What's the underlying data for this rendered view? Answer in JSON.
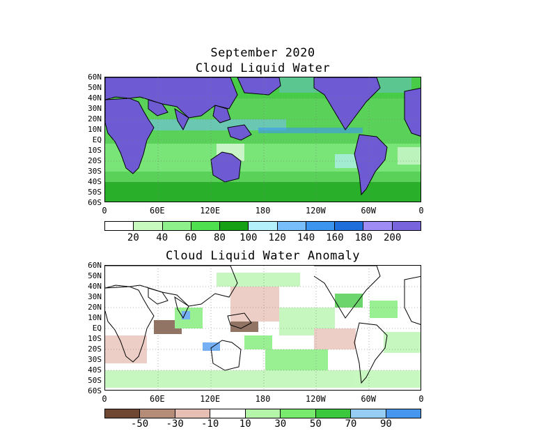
{
  "figure": {
    "title": "September 2020",
    "top_subtitle": "Cloud Liquid Water",
    "bottom_subtitle": "Cloud Liquid Water Anomaly"
  },
  "lat_labels": [
    "60N",
    "50N",
    "40N",
    "30N",
    "20N",
    "10N",
    "EQ",
    "10S",
    "20S",
    "30S",
    "40S",
    "50S",
    "60S"
  ],
  "lon_labels": [
    "0",
    "60E",
    "120E",
    "180",
    "120W",
    "60W",
    "0"
  ],
  "top_colorbar": {
    "colors": [
      "#ffffff",
      "#c8fac0",
      "#8ef08a",
      "#4ee04e",
      "#16a016",
      "#b4f0fa",
      "#78befa",
      "#3c96f0",
      "#1e6edc",
      "#a08cf5",
      "#7864dc"
    ],
    "labels": [
      "20",
      "40",
      "60",
      "80",
      "100",
      "120",
      "140",
      "160",
      "180",
      "200"
    ]
  },
  "bottom_colorbar": {
    "colors": [
      "#6e4632",
      "#b48c78",
      "#e6beb4",
      "#ffffff",
      "#b4f5aa",
      "#78eb6e",
      "#3cc83c",
      "#96cdf5",
      "#4696f0"
    ],
    "labels": [
      "-50",
      "-30",
      "-10",
      "10",
      "30",
      "50",
      "70",
      "90"
    ]
  },
  "map_colors": {
    "land_top": "#6e5ad2",
    "ocean_top": "#5ad25a",
    "coast": "#000000",
    "grid": "#777777",
    "anom_ocean": "#ffffff"
  }
}
